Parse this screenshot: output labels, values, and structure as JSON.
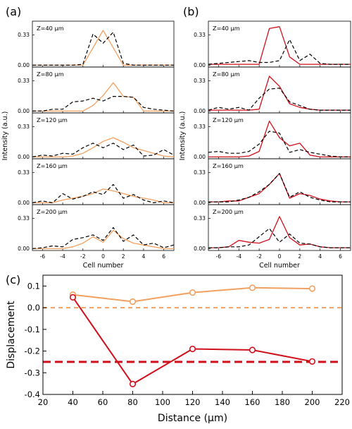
{
  "chart_data": [
    {
      "type": "line",
      "panel_label": "(a)",
      "xlabel": "Cell number",
      "ylabel": "Intensity (a.u.)",
      "x": [
        -7,
        -6,
        -5,
        -4,
        -3,
        -2,
        -1,
        0,
        1,
        2,
        3,
        4,
        5,
        6,
        7
      ],
      "xticks": [
        -6,
        -4,
        -2,
        0,
        2,
        4,
        6
      ],
      "xlim": [
        -7,
        7
      ],
      "ylim": [
        -0.02,
        0.48
      ],
      "yticks": [
        "0.00",
        "0.33"
      ],
      "colors": {
        "solid": "#f2a060",
        "dashed": "#000000"
      },
      "subplots": [
        {
          "label": "Z=40 μm",
          "series": [
            {
              "style": "solid",
              "values": [
                0,
                0,
                0,
                0,
                0,
                0,
                0.19,
                0.38,
                0.19,
                0,
                0,
                0,
                0,
                0,
                0
              ]
            },
            {
              "style": "dashed",
              "values": [
                0,
                0,
                0,
                0,
                0,
                0.01,
                0.34,
                0.24,
                0.36,
                0.02,
                0,
                0,
                0,
                0,
                0
              ]
            }
          ]
        },
        {
          "label": "Z=80 μm",
          "series": [
            {
              "style": "solid",
              "values": [
                0,
                0,
                0,
                0,
                0,
                0,
                0.06,
                0.17,
                0.31,
                0.16,
                0.15,
                0,
                0,
                0,
                0
              ]
            },
            {
              "style": "dashed",
              "values": [
                0,
                0,
                0.02,
                0.02,
                0.1,
                0.11,
                0.14,
                0.11,
                0.16,
                0.16,
                0.15,
                0.04,
                0.02,
                0.01,
                0
              ]
            }
          ]
        },
        {
          "label": "Z=120 μm",
          "series": [
            {
              "style": "solid",
              "values": [
                0,
                0,
                0,
                0,
                0.01,
                0.04,
                0.1,
                0.17,
                0.21,
                0.16,
                0.1,
                0.07,
                0.04,
                0.01,
                0
              ]
            },
            {
              "style": "dashed",
              "values": [
                0,
                0.02,
                0.01,
                0.04,
                0.03,
                0.1,
                0.15,
                0.1,
                0.15,
                0.08,
                0.13,
                0.01,
                0.02,
                0.08,
                0.02
              ]
            }
          ]
        },
        {
          "label": "Z=160 μm",
          "series": [
            {
              "style": "solid",
              "values": [
                0,
                0,
                0,
                0.03,
                0.05,
                0.07,
                0.1,
                0.15,
                0.13,
                0.1,
                0.07,
                0.05,
                0.03,
                0,
                0
              ]
            },
            {
              "style": "dashed",
              "values": [
                0,
                0.02,
                0,
                0.1,
                0.04,
                0.07,
                0.12,
                0.09,
                0.2,
                0.05,
                0.09,
                0.03,
                0,
                0.02,
                0
              ]
            }
          ]
        },
        {
          "label": "Z=200 μm",
          "series": [
            {
              "style": "solid",
              "values": [
                0,
                0,
                0,
                0,
                0.02,
                0.06,
                0.13,
                0.07,
                0.2,
                0.11,
                0.06,
                0.04,
                0.02,
                0,
                0
              ]
            },
            {
              "style": "dashed",
              "values": [
                0,
                0.01,
                0.03,
                0.02,
                0.1,
                0.12,
                0.15,
                0.09,
                0.23,
                0.08,
                0.15,
                0.04,
                0.06,
                0.01,
                0.04
              ]
            }
          ]
        }
      ]
    },
    {
      "type": "line",
      "panel_label": "(b)",
      "xlabel": "Cell number",
      "ylabel": "Intensity (a.u.)",
      "x": [
        -7,
        -6,
        -5,
        -4,
        -3,
        -2,
        -1,
        0,
        1,
        2,
        3,
        4,
        5,
        6,
        7
      ],
      "xticks": [
        -6,
        -4,
        -2,
        0,
        2,
        4,
        6
      ],
      "xlim": [
        -7,
        7
      ],
      "ylim": [
        -0.02,
        0.48
      ],
      "yticks": [
        "0.00",
        "0.33"
      ],
      "colors": {
        "solid": "#d0101a",
        "dashed": "#000000"
      },
      "subplots": [
        {
          "label": "Z=40 μm",
          "series": [
            {
              "style": "solid",
              "values": [
                0.01,
                0.01,
                0.01,
                0.01,
                0.01,
                0.01,
                0.4,
                0.42,
                0.09,
                0.01,
                0.01,
                0.01,
                0.01,
                0.01,
                0.01
              ]
            },
            {
              "style": "dashed",
              "values": [
                0.01,
                0.02,
                0.03,
                0.04,
                0.05,
                0.03,
                0.03,
                0.05,
                0.28,
                0.05,
                0.12,
                0.02,
                0.01,
                0.01,
                0.01
              ]
            }
          ]
        },
        {
          "label": "Z=80 μm",
          "series": [
            {
              "style": "solid",
              "values": [
                0.01,
                0.01,
                0.01,
                0.01,
                0.01,
                0.02,
                0.38,
                0.27,
                0.08,
                0.04,
                0.02,
                0.01,
                0.01,
                0.01,
                0.01
              ]
            },
            {
              "style": "dashed",
              "values": [
                0.01,
                0.04,
                0.02,
                0.04,
                0.01,
                0.14,
                0.24,
                0.25,
                0.1,
                0.06,
                0.02,
                0.01,
                0.01,
                0.01,
                0.01
              ]
            }
          ]
        },
        {
          "label": "Z=120 μm",
          "series": [
            {
              "style": "solid",
              "values": [
                0,
                0,
                0,
                0,
                0.01,
                0.06,
                0.39,
                0.21,
                0.12,
                0.15,
                0.02,
                0,
                0,
                0,
                0
              ]
            },
            {
              "style": "dashed",
              "values": [
                0.05,
                0.06,
                0.04,
                0.04,
                0.06,
                0.14,
                0.28,
                0.26,
                0.05,
                0.08,
                0.05,
                0.03,
                0.01,
                0,
                0
              ]
            }
          ]
        },
        {
          "label": "Z=160 μm",
          "series": [
            {
              "style": "solid",
              "values": [
                0.01,
                0.01,
                0.02,
                0.02,
                0.06,
                0.1,
                0.2,
                0.32,
                0.05,
                0.1,
                0.08,
                0.04,
                0.02,
                0.01,
                0.01
              ]
            },
            {
              "style": "dashed",
              "values": [
                0.01,
                0.01,
                0.01,
                0.03,
                0.06,
                0.12,
                0.2,
                0.32,
                0.06,
                0.12,
                0.06,
                0.03,
                0.01,
                0.01,
                0.01
              ]
            }
          ]
        },
        {
          "label": "Z=200 μm",
          "series": [
            {
              "style": "solid",
              "values": [
                0.01,
                0.01,
                0.02,
                0.09,
                0.07,
                0.06,
                0.1,
                0.35,
                0.12,
                0.04,
                0.05,
                0.02,
                0.01,
                0.01,
                0.01
              ]
            },
            {
              "style": "dashed",
              "values": [
                0.01,
                0.01,
                0.02,
                0.02,
                0.04,
                0.13,
                0.22,
                0.07,
                0.16,
                0.06,
                0.05,
                0.02,
                0.01,
                0.01,
                0.01
              ]
            }
          ]
        }
      ]
    },
    {
      "type": "line",
      "panel_label": "(c)",
      "xlabel": "Distance (μm)",
      "ylabel": "Displacement",
      "xlim": [
        20,
        220
      ],
      "ylim": [
        -0.4,
        0.15
      ],
      "xticks": [
        "20",
        "40",
        "60",
        "80",
        "100",
        "120",
        "140",
        "160",
        "180",
        "200",
        "220"
      ],
      "yticks": [
        "0.1",
        "0.0",
        "-0.1",
        "-0.2",
        "-0.3",
        "-0.4"
      ],
      "series": [
        {
          "color": "#f2a060",
          "style": "solid",
          "marker": "open-circle",
          "x": [
            40,
            80,
            120,
            160,
            200
          ],
          "y": [
            0.06,
            0.028,
            0.07,
            0.092,
            0.088
          ]
        },
        {
          "color": "#d0101a",
          "style": "solid",
          "marker": "open-circle",
          "x": [
            40,
            80,
            120,
            160,
            200
          ],
          "y": [
            0.048,
            -0.352,
            -0.19,
            -0.195,
            -0.248
          ]
        }
      ],
      "reference_lines": [
        {
          "color": "#f2a060",
          "style": "dashed",
          "y": 0.0
        },
        {
          "color": "#d0101a",
          "style": "dashed",
          "y": -0.25
        }
      ]
    }
  ]
}
